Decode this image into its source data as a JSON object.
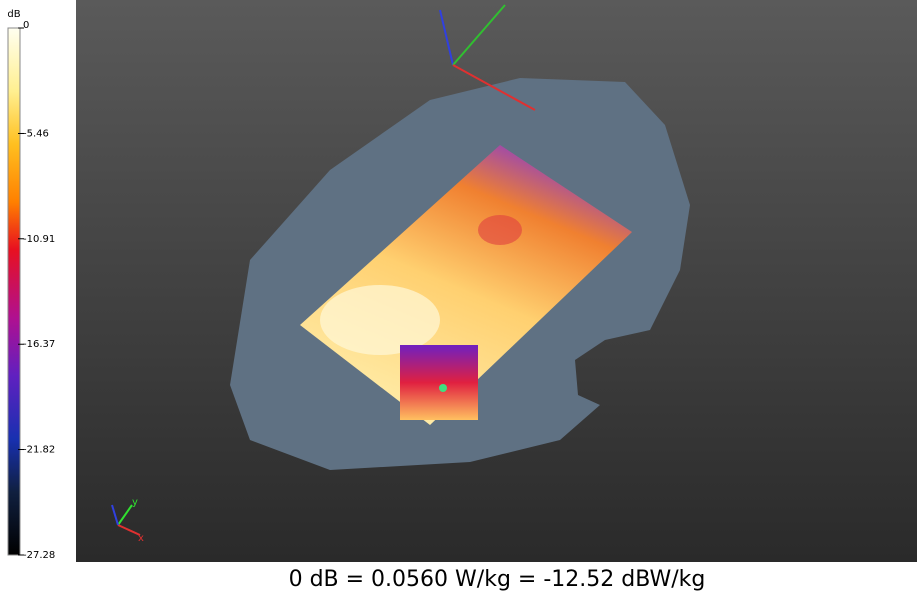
{
  "colorbar": {
    "unit": "dB",
    "range": [
      -27.28,
      0
    ],
    "ticks": [
      0,
      -5.46,
      -10.91,
      -16.37,
      -21.82,
      -27.28
    ]
  },
  "triad": {
    "x": "x",
    "y": "y"
  },
  "caption": "0 dB = 0.0560 W/kg = -12.52 dBW/kg"
}
